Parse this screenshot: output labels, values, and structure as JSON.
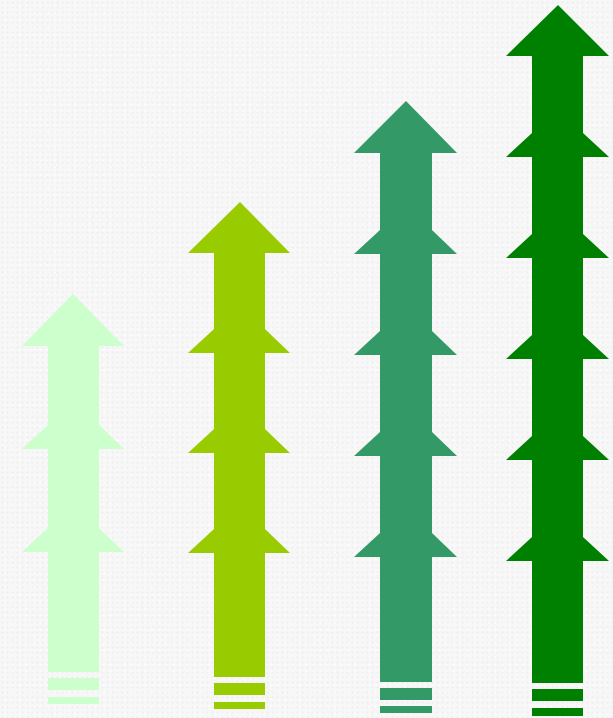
{
  "diagram": {
    "type": "growth-arrows",
    "arrows": [
      {
        "name": "arrow-1",
        "color": "#ccffcc",
        "tiers": 3
      },
      {
        "name": "arrow-2",
        "color": "#99cc00",
        "tiers": 4
      },
      {
        "name": "arrow-3",
        "color": "#339966",
        "tiers": 5
      },
      {
        "name": "arrow-4",
        "color": "#008000",
        "tiers": 6
      }
    ]
  }
}
